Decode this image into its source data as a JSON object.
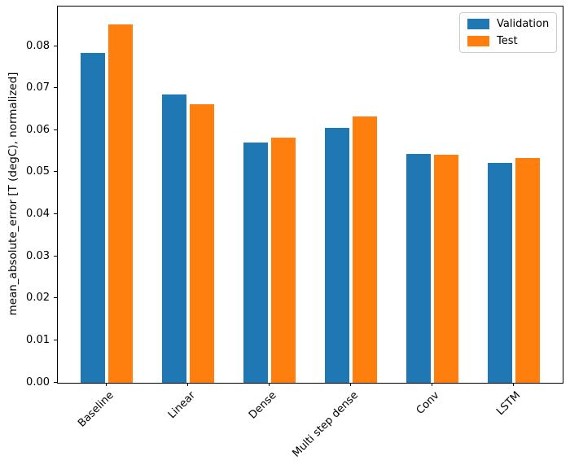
{
  "chart_data": {
    "type": "bar",
    "categories": [
      "Baseline",
      "Linear",
      "Dense",
      "Multi step dense",
      "Conv",
      "LSTM"
    ],
    "series": [
      {
        "name": "Validation",
        "color": "#1f77b4",
        "values": [
          0.0785,
          0.0686,
          0.0571,
          0.0606,
          0.0545,
          0.0524
        ]
      },
      {
        "name": "Test",
        "color": "#ff7f0e",
        "values": [
          0.0852,
          0.0663,
          0.0583,
          0.0634,
          0.0542,
          0.0534
        ]
      }
    ],
    "title": "",
    "xlabel": "",
    "ylabel": "mean_absolute_error [T (degC), normalized]",
    "ylim": [
      0,
      0.0895
    ],
    "yticks": [
      0.0,
      0.01,
      0.02,
      0.03,
      0.04,
      0.05,
      0.06,
      0.07,
      0.08
    ],
    "ytick_labels": [
      "0.00",
      "0.01",
      "0.02",
      "0.03",
      "0.04",
      "0.05",
      "0.06",
      "0.07",
      "0.08"
    ],
    "xtick_rotation_deg": 45,
    "grid": false,
    "legend": {
      "position": "upper right",
      "entries": [
        {
          "label": "Validation",
          "color": "#1f77b4"
        },
        {
          "label": "Test",
          "color": "#ff7f0e"
        }
      ]
    },
    "axis_color": "#000000",
    "background_color": "#ffffff"
  }
}
